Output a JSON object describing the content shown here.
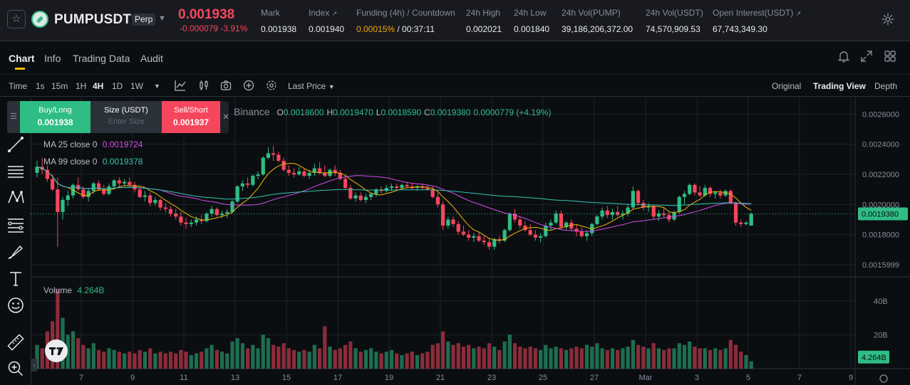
{
  "header": {
    "symbol": "PUMPUSDT",
    "contract_type": "Perp",
    "last_price": "0.001938",
    "price_change": "-0.000079 -3.91%",
    "stats": [
      {
        "key": "mark",
        "label": "Mark",
        "value": "0.001938",
        "link": false
      },
      {
        "key": "index",
        "label": "Index",
        "value": "0.001940",
        "link": true
      },
      {
        "key": "funding",
        "label": "Funding (4h) / Countdown",
        "value_rate": "0.00015%",
        "value_countdown": "/ 00:37:11",
        "link": false
      },
      {
        "key": "high",
        "label": "24h High",
        "value": "0.002021",
        "link": false
      },
      {
        "key": "low",
        "label": "24h Low",
        "value": "0.001840",
        "link": false
      },
      {
        "key": "vol_base",
        "label": "24h Vol(PUMP)",
        "value": "39,186,206,372.00",
        "link": false
      },
      {
        "key": "vol_quote",
        "label": "24h Vol(USDT)",
        "value": "74,570,909.53",
        "link": false
      },
      {
        "key": "oi",
        "label": "Open Interest(USDT)",
        "value": "67,743,349.30",
        "link": true
      }
    ]
  },
  "tabs": [
    "Chart",
    "Info",
    "Trading Data",
    "Audit"
  ],
  "toolbar": {
    "intervals": [
      "Time",
      "1s",
      "15m",
      "1H",
      "4H",
      "1D",
      "1W"
    ],
    "active_interval": "4H",
    "price_type": "Last Price",
    "views": [
      "Original",
      "Trading View",
      "Depth"
    ],
    "active_view": "Trading View"
  },
  "trade_widget": {
    "buy_label": "Buy/Long",
    "buy_price": "0.001938",
    "size_label": "Size (USDT)",
    "size_placeholder": "Enter Size",
    "sell_label": "Sell/Short",
    "sell_price": "0.001937"
  },
  "legend": {
    "exchange": "Binance",
    "o_label": "O",
    "o": "0.0018600",
    "h_label": "H",
    "h": "0.0019470",
    "l_label": "L",
    "l": "0.0018590",
    "c_label": "C",
    "c": "0.0019380",
    "change": "0.0000779 (+4.19%)",
    "ma25_label": "MA 25 close 0",
    "ma25_value": "0.0019724",
    "ma99_label": "MA 99 close 0",
    "ma99_value": "0.0019378",
    "volume_label": "Volume",
    "volume_value": "4.264B"
  },
  "colors": {
    "up": "#2ebd85",
    "down": "#f6465d",
    "ma7": "#f0b90b",
    "ma25": "#d04de8",
    "ma99": "#36c5b0",
    "accent": "#f0b90b"
  },
  "chart_data": {
    "type": "candlestick",
    "price_axis_ticks": [
      "0.0026000",
      "0.0024000",
      "0.0022000",
      "0.0020000",
      "0.0018000",
      "0.0015999"
    ],
    "current_price_label": "0.0019380",
    "volume_axis_ticks": [
      "40B",
      "20B"
    ],
    "current_volume_label": "4.264B",
    "x_tick_labels": [
      "7",
      "9",
      "11",
      "13",
      "15",
      "17",
      "19",
      "21",
      "23",
      "25",
      "27",
      "Mar",
      "3",
      "5",
      "7",
      "9"
    ],
    "price_ylim": [
      0.00152,
      0.00271
    ],
    "volume_ylim": [
      0,
      50
    ],
    "candles": [
      [
        0.00221,
        0.00229,
        0.00218,
        0.00225,
        14
      ],
      [
        0.00225,
        0.00231,
        0.0022,
        0.00223,
        12
      ],
      [
        0.00223,
        0.00226,
        0.00215,
        0.00217,
        22
      ],
      [
        0.00217,
        0.0022,
        0.00209,
        0.0021,
        28
      ],
      [
        0.0021,
        0.00218,
        0.00172,
        0.00195,
        47
      ],
      [
        0.00195,
        0.00205,
        0.0019,
        0.00203,
        30
      ],
      [
        0.00203,
        0.00209,
        0.00199,
        0.00206,
        20
      ],
      [
        0.00206,
        0.00214,
        0.00204,
        0.00213,
        22
      ],
      [
        0.00213,
        0.00218,
        0.00209,
        0.0021,
        18
      ],
      [
        0.0021,
        0.00212,
        0.00204,
        0.00205,
        14
      ],
      [
        0.00205,
        0.00211,
        0.00202,
        0.00209,
        12
      ],
      [
        0.00209,
        0.00215,
        0.00207,
        0.00214,
        15
      ],
      [
        0.00214,
        0.00216,
        0.00209,
        0.0021,
        11
      ],
      [
        0.0021,
        0.00213,
        0.00206,
        0.00207,
        10
      ],
      [
        0.00207,
        0.00214,
        0.00206,
        0.00212,
        12
      ],
      [
        0.00212,
        0.00217,
        0.0021,
        0.00216,
        11
      ],
      [
        0.00216,
        0.00218,
        0.00212,
        0.00214,
        10
      ],
      [
        0.00214,
        0.00217,
        0.00212,
        0.00215,
        9
      ],
      [
        0.00215,
        0.00218,
        0.00211,
        0.00213,
        10
      ],
      [
        0.00213,
        0.00215,
        0.00208,
        0.0021,
        9
      ],
      [
        0.0021,
        0.00212,
        0.00204,
        0.00205,
        11
      ],
      [
        0.00205,
        0.00209,
        0.00202,
        0.00206,
        10
      ],
      [
        0.00206,
        0.00208,
        0.00199,
        0.00201,
        12
      ],
      [
        0.00201,
        0.00205,
        0.00199,
        0.00203,
        9
      ],
      [
        0.00203,
        0.00204,
        0.00196,
        0.00198,
        10
      ],
      [
        0.00198,
        0.00201,
        0.00195,
        0.00197,
        9
      ],
      [
        0.00197,
        0.00199,
        0.00192,
        0.00194,
        10
      ],
      [
        0.00194,
        0.00197,
        0.0019,
        0.00192,
        9
      ],
      [
        0.00192,
        0.00195,
        0.00186,
        0.00188,
        11
      ],
      [
        0.00188,
        0.00191,
        0.00184,
        0.00187,
        10
      ],
      [
        0.00187,
        0.0019,
        0.00185,
        0.00188,
        8
      ],
      [
        0.00188,
        0.00192,
        0.00186,
        0.0019,
        9
      ],
      [
        0.0019,
        0.00193,
        0.00187,
        0.00189,
        10
      ],
      [
        0.00189,
        0.00195,
        0.00188,
        0.00194,
        12
      ],
      [
        0.00194,
        0.00199,
        0.00192,
        0.00197,
        14
      ],
      [
        0.00197,
        0.00198,
        0.00192,
        0.00193,
        11
      ],
      [
        0.00193,
        0.00196,
        0.00191,
        0.00194,
        10
      ],
      [
        0.00194,
        0.00197,
        0.00191,
        0.00195,
        9
      ],
      [
        0.00195,
        0.00203,
        0.00194,
        0.00202,
        16
      ],
      [
        0.00202,
        0.00213,
        0.00201,
        0.00212,
        18
      ],
      [
        0.00212,
        0.00216,
        0.00209,
        0.00214,
        15
      ],
      [
        0.00214,
        0.00218,
        0.00211,
        0.00213,
        12
      ],
      [
        0.00213,
        0.0022,
        0.00212,
        0.00219,
        14
      ],
      [
        0.00219,
        0.00222,
        0.00217,
        0.0022,
        12
      ],
      [
        0.0022,
        0.00232,
        0.00219,
        0.00231,
        20
      ],
      [
        0.00231,
        0.00238,
        0.0023,
        0.00234,
        18
      ],
      [
        0.00234,
        0.00239,
        0.00229,
        0.00233,
        14
      ],
      [
        0.00233,
        0.00235,
        0.00228,
        0.00229,
        13
      ],
      [
        0.00229,
        0.00231,
        0.00222,
        0.00223,
        15
      ],
      [
        0.00223,
        0.00226,
        0.00219,
        0.00221,
        12
      ],
      [
        0.00221,
        0.00224,
        0.00218,
        0.0022,
        11
      ],
      [
        0.0022,
        0.00225,
        0.00219,
        0.00222,
        10
      ],
      [
        0.00222,
        0.00224,
        0.00218,
        0.00219,
        11
      ],
      [
        0.00219,
        0.00223,
        0.00217,
        0.00221,
        10
      ],
      [
        0.00221,
        0.00227,
        0.00219,
        0.00224,
        14
      ],
      [
        0.00224,
        0.00228,
        0.0022,
        0.00221,
        12
      ],
      [
        0.00221,
        0.00226,
        0.00218,
        0.00219,
        25
      ],
      [
        0.00219,
        0.00224,
        0.00218,
        0.00223,
        13
      ],
      [
        0.00223,
        0.00226,
        0.00219,
        0.00221,
        11
      ],
      [
        0.00221,
        0.00223,
        0.00216,
        0.00217,
        12
      ],
      [
        0.00217,
        0.00219,
        0.0021,
        0.00211,
        14
      ],
      [
        0.00211,
        0.00213,
        0.00203,
        0.00204,
        16
      ],
      [
        0.00204,
        0.00208,
        0.00202,
        0.00206,
        12
      ],
      [
        0.00206,
        0.00208,
        0.00202,
        0.00203,
        10
      ],
      [
        0.00203,
        0.00207,
        0.00201,
        0.00205,
        11
      ],
      [
        0.00205,
        0.00208,
        0.00203,
        0.00207,
        12
      ],
      [
        0.00207,
        0.00211,
        0.00205,
        0.0021,
        10
      ],
      [
        0.0021,
        0.00212,
        0.00207,
        0.00209,
        9
      ],
      [
        0.00209,
        0.00213,
        0.00208,
        0.00211,
        10
      ],
      [
        0.00211,
        0.00214,
        0.00209,
        0.00212,
        11
      ],
      [
        0.00212,
        0.00214,
        0.0021,
        0.00211,
        9
      ],
      [
        0.00211,
        0.00214,
        0.0021,
        0.00213,
        8
      ],
      [
        0.00213,
        0.00215,
        0.00211,
        0.00212,
        9
      ],
      [
        0.00212,
        0.00214,
        0.0021,
        0.00211,
        10
      ],
      [
        0.00211,
        0.00213,
        0.00209,
        0.00212,
        8
      ],
      [
        0.00212,
        0.00214,
        0.0021,
        0.00211,
        9
      ],
      [
        0.00211,
        0.00213,
        0.00209,
        0.0021,
        10
      ],
      [
        0.0021,
        0.00212,
        0.00204,
        0.00205,
        14
      ],
      [
        0.00205,
        0.00208,
        0.00198,
        0.002,
        15
      ],
      [
        0.002,
        0.00202,
        0.00183,
        0.00186,
        22
      ],
      [
        0.00186,
        0.00192,
        0.00184,
        0.0019,
        16
      ],
      [
        0.0019,
        0.00192,
        0.00185,
        0.00187,
        14
      ],
      [
        0.00187,
        0.00189,
        0.0018,
        0.00182,
        15
      ],
      [
        0.00182,
        0.00186,
        0.00179,
        0.0018,
        13
      ],
      [
        0.0018,
        0.00183,
        0.00176,
        0.00178,
        14
      ],
      [
        0.00178,
        0.00181,
        0.00175,
        0.00179,
        12
      ],
      [
        0.00179,
        0.00182,
        0.00175,
        0.00176,
        13
      ],
      [
        0.00176,
        0.00179,
        0.00173,
        0.00175,
        12
      ],
      [
        0.00175,
        0.00178,
        0.0017,
        0.00172,
        15
      ],
      [
        0.00172,
        0.00178,
        0.0017,
        0.00177,
        13
      ],
      [
        0.00177,
        0.00179,
        0.00174,
        0.00176,
        11
      ],
      [
        0.00176,
        0.00184,
        0.00175,
        0.00183,
        16
      ],
      [
        0.00183,
        0.00195,
        0.00182,
        0.00194,
        20
      ],
      [
        0.00194,
        0.00197,
        0.00188,
        0.0019,
        15
      ],
      [
        0.0019,
        0.00192,
        0.00184,
        0.00186,
        13
      ],
      [
        0.00186,
        0.00189,
        0.00182,
        0.00183,
        12
      ],
      [
        0.00183,
        0.00187,
        0.00179,
        0.0018,
        13
      ],
      [
        0.0018,
        0.00183,
        0.00176,
        0.00178,
        12
      ],
      [
        0.00178,
        0.00181,
        0.00175,
        0.00179,
        11
      ],
      [
        0.00179,
        0.00188,
        0.00178,
        0.00186,
        14
      ],
      [
        0.00186,
        0.0019,
        0.00183,
        0.00188,
        12
      ],
      [
        0.00188,
        0.00196,
        0.00187,
        0.00194,
        13
      ],
      [
        0.00194,
        0.00196,
        0.00184,
        0.00185,
        12
      ],
      [
        0.00185,
        0.00189,
        0.00183,
        0.00188,
        11
      ],
      [
        0.00188,
        0.0019,
        0.00182,
        0.00184,
        12
      ],
      [
        0.00184,
        0.00187,
        0.00179,
        0.00182,
        13
      ],
      [
        0.00182,
        0.00185,
        0.00178,
        0.00179,
        12
      ],
      [
        0.00179,
        0.00183,
        0.00176,
        0.00181,
        14
      ],
      [
        0.00181,
        0.00188,
        0.00179,
        0.00187,
        13
      ],
      [
        0.00187,
        0.00193,
        0.00186,
        0.00192,
        15
      ],
      [
        0.00192,
        0.00198,
        0.0019,
        0.00196,
        12
      ],
      [
        0.00196,
        0.00199,
        0.00191,
        0.00193,
        11
      ],
      [
        0.00193,
        0.00197,
        0.0019,
        0.00195,
        12
      ],
      [
        0.00195,
        0.00199,
        0.00192,
        0.00193,
        11
      ],
      [
        0.00193,
        0.00196,
        0.0019,
        0.00194,
        12
      ],
      [
        0.00194,
        0.002,
        0.00192,
        0.00198,
        13
      ],
      [
        0.00198,
        0.00212,
        0.00197,
        0.00209,
        17
      ],
      [
        0.00209,
        0.0021,
        0.00199,
        0.00201,
        14
      ],
      [
        0.00201,
        0.00203,
        0.00196,
        0.00198,
        13
      ],
      [
        0.00198,
        0.00201,
        0.00195,
        0.00199,
        12
      ],
      [
        0.00199,
        0.002,
        0.0019,
        0.00192,
        15
      ],
      [
        0.00192,
        0.00196,
        0.00189,
        0.00194,
        12
      ],
      [
        0.00194,
        0.00198,
        0.00191,
        0.00193,
        11
      ],
      [
        0.00193,
        0.00195,
        0.00188,
        0.0019,
        12
      ],
      [
        0.0019,
        0.00196,
        0.00189,
        0.00195,
        12
      ],
      [
        0.00195,
        0.00206,
        0.00194,
        0.00205,
        15
      ],
      [
        0.00205,
        0.00209,
        0.002,
        0.00207,
        14
      ],
      [
        0.00207,
        0.00214,
        0.00206,
        0.00213,
        16
      ],
      [
        0.00213,
        0.00214,
        0.00206,
        0.00208,
        13
      ],
      [
        0.00208,
        0.00212,
        0.00205,
        0.00206,
        12
      ],
      [
        0.00206,
        0.00213,
        0.00205,
        0.00211,
        12
      ],
      [
        0.00211,
        0.00212,
        0.00205,
        0.00207,
        11
      ],
      [
        0.00207,
        0.00209,
        0.00204,
        0.00208,
        12
      ],
      [
        0.00208,
        0.0021,
        0.00204,
        0.00206,
        11
      ],
      [
        0.00206,
        0.0021,
        0.00205,
        0.00209,
        12
      ],
      [
        0.00209,
        0.0021,
        0.002,
        0.00201,
        17
      ],
      [
        0.00201,
        0.00202,
        0.00186,
        0.00188,
        14
      ],
      [
        0.00188,
        0.0019,
        0.00185,
        0.00187,
        10
      ],
      [
        0.00187,
        0.00189,
        0.00186,
        0.00188,
        8
      ],
      [
        0.00186,
        0.001947,
        0.001859,
        0.001938,
        4.3
      ]
    ]
  }
}
